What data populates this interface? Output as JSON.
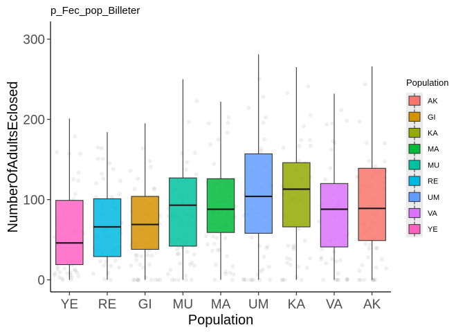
{
  "chart_data": {
    "type": "boxplot",
    "title": "p_Fec_pop_Billeter",
    "xlabel": "Population",
    "ylabel": "NumberOfAdultsEclosed",
    "ylim": [
      -15,
      322
    ],
    "yticks": [
      0,
      100,
      200,
      300
    ],
    "ytick_labels": [
      "0",
      "100",
      "200",
      "300"
    ],
    "grid": false,
    "legend": {
      "title": "Population",
      "position": "right",
      "entries": [
        "AK",
        "GI",
        "KA",
        "MA",
        "MU",
        "RE",
        "UM",
        "VA",
        "YE"
      ]
    },
    "categories": [
      "YE",
      "RE",
      "GI",
      "MU",
      "MA",
      "UM",
      "KA",
      "VA",
      "AK"
    ],
    "colors": {
      "AK": "#F8766D",
      "GI": "#D39200",
      "KA": "#93AA00",
      "MA": "#00BA38",
      "MU": "#00C19F",
      "RE": "#00B9E3",
      "UM": "#619CFF",
      "VA": "#DB72FB",
      "YE": "#FF61C3"
    },
    "boxes": [
      {
        "group": "YE",
        "whisker_low": 0,
        "q1": 19,
        "median": 46,
        "q3": 99,
        "whisker_high": 201
      },
      {
        "group": "RE",
        "whisker_low": 0,
        "q1": 29,
        "median": 66,
        "q3": 101,
        "whisker_high": 184
      },
      {
        "group": "GI",
        "whisker_low": 0,
        "q1": 38,
        "median": 69,
        "q3": 104,
        "whisker_high": 195
      },
      {
        "group": "MU",
        "whisker_low": 0,
        "q1": 42,
        "median": 93,
        "q3": 127,
        "whisker_high": 250
      },
      {
        "group": "MA",
        "whisker_low": 0,
        "q1": 59,
        "median": 88,
        "q3": 126,
        "whisker_high": 222
      },
      {
        "group": "UM",
        "whisker_low": 0,
        "q1": 58,
        "median": 104,
        "q3": 157,
        "whisker_high": 281
      },
      {
        "group": "KA",
        "whisker_low": 0,
        "q1": 66,
        "median": 113,
        "q3": 146,
        "whisker_high": 265
      },
      {
        "group": "VA",
        "whisker_low": 0,
        "q1": 41,
        "median": 88,
        "q3": 120,
        "whisker_high": 232
      },
      {
        "group": "AK",
        "whisker_low": 0,
        "q1": 49,
        "median": 89,
        "q3": 139,
        "whisker_high": 266
      }
    ]
  }
}
